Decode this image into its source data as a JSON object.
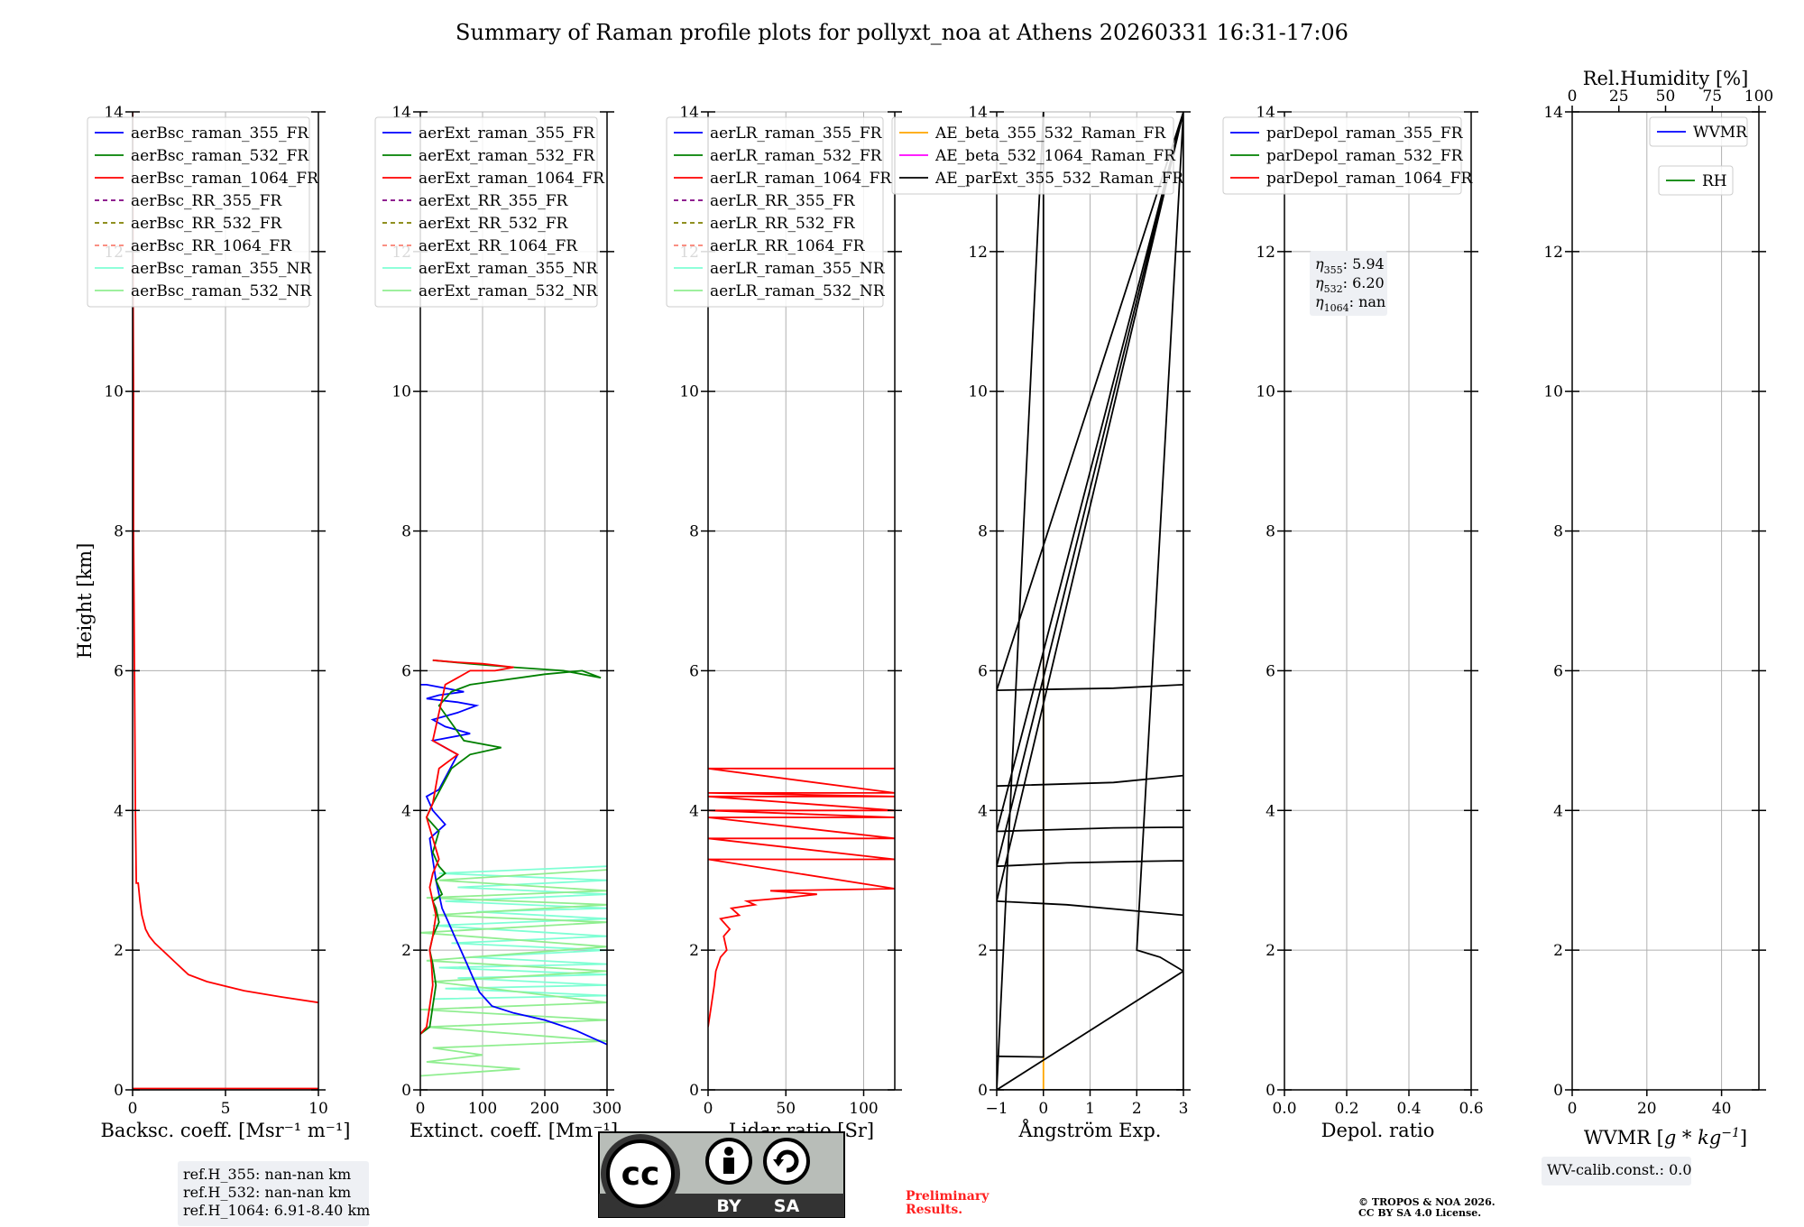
{
  "figure": {
    "title": "Summary of Raman profile plots for pollyxt_noa at Athens 20260331 16:31-17:06"
  },
  "chart_data": [
    {
      "type": "line",
      "id": "p1",
      "xlabel": "Backsc. coeff. [Msr⁻¹ m⁻¹]",
      "ylabel": "Height [km]",
      "xlim": [
        0,
        10
      ],
      "ylim": [
        0,
        14
      ],
      "xticks": [
        "0",
        "5",
        "10"
      ],
      "xtickvals": [
        0,
        5,
        10
      ],
      "yticks": [
        "0",
        "2",
        "4",
        "6",
        "8",
        "10",
        "12",
        "14"
      ],
      "ytickvals": [
        0,
        2,
        4,
        6,
        8,
        10,
        12,
        14
      ],
      "legend": [
        {
          "label": "aerBsc_raman_355_FR",
          "color": "#0000ff",
          "dash": false
        },
        {
          "label": "aerBsc_raman_532_FR",
          "color": "#008000",
          "dash": false
        },
        {
          "label": "aerBsc_raman_1064_FR",
          "color": "#ff0000",
          "dash": false
        },
        {
          "label": "aerBsc_RR_355_FR",
          "color": "#800080",
          "dash": true
        },
        {
          "label": "aerBsc_RR_532_FR",
          "color": "#808000",
          "dash": true
        },
        {
          "label": "aerBsc_RR_1064_FR",
          "color": "#fa8072",
          "dash": true
        },
        {
          "label": "aerBsc_raman_355_NR",
          "color": "#7fffd4",
          "dash": false
        },
        {
          "label": "aerBsc_raman_532_NR",
          "color": "#90ee90",
          "dash": false
        }
      ],
      "series": [
        {
          "name": "aerBsc_raman_1064_FR",
          "color": "#ff0000",
          "x": [
            10,
            8,
            6,
            4,
            3,
            2.4,
            1.8,
            1.2,
            0.9,
            0.7,
            0.5,
            0.4,
            0.3,
            0.2,
            0.15,
            0.1,
            0.05,
            0.05,
            0.02,
            0.0
          ],
          "y": [
            1.25,
            1.33,
            1.42,
            1.55,
            1.65,
            1.8,
            1.95,
            2.1,
            2.2,
            2.3,
            2.5,
            2.7,
            2.96,
            2.96,
            4,
            6,
            8,
            10,
            12,
            14
          ]
        },
        {
          "name": "aerBsc_raman_1064_FR_base",
          "color": "#ff0000",
          "x": [
            0,
            10
          ],
          "y": [
            0.02,
            0.02
          ]
        }
      ]
    },
    {
      "type": "line",
      "id": "p2",
      "xlabel": "Extinct. coeff. [Mm⁻¹]",
      "xlim": [
        0,
        300
      ],
      "ylim": [
        0,
        14
      ],
      "xticks": [
        "0",
        "100",
        "200",
        "300"
      ],
      "xtickvals": [
        0,
        100,
        200,
        300
      ],
      "yticks": [
        "0",
        "2",
        "4",
        "6",
        "8",
        "10",
        "12",
        "14"
      ],
      "ytickvals": [
        0,
        2,
        4,
        6,
        8,
        10,
        12,
        14
      ],
      "legend": [
        {
          "label": "aerExt_raman_355_FR",
          "color": "#0000ff",
          "dash": false
        },
        {
          "label": "aerExt_raman_532_FR",
          "color": "#008000",
          "dash": false
        },
        {
          "label": "aerExt_raman_1064_FR",
          "color": "#ff0000",
          "dash": false
        },
        {
          "label": "aerExt_RR_355_FR",
          "color": "#800080",
          "dash": true
        },
        {
          "label": "aerExt_RR_532_FR",
          "color": "#808000",
          "dash": true
        },
        {
          "label": "aerExt_RR_1064_FR",
          "color": "#fa8072",
          "dash": true
        },
        {
          "label": "aerExt_raman_355_NR",
          "color": "#7fffd4",
          "dash": false
        },
        {
          "label": "aerExt_raman_532_NR",
          "color": "#90ee90",
          "dash": false
        }
      ],
      "series": [
        {
          "name": "aerExt_raman_355_NR",
          "color": "#7fffd4",
          "x": [
            20,
            300,
            40,
            300,
            60,
            300,
            30,
            300,
            80,
            300,
            50,
            300,
            20,
            300,
            90,
            300,
            40,
            300,
            60,
            300,
            30,
            300
          ],
          "y": [
            1.3,
            1.35,
            1.45,
            1.5,
            1.6,
            1.65,
            1.75,
            1.8,
            1.9,
            2.0,
            2.1,
            2.2,
            2.35,
            2.45,
            2.55,
            2.6,
            2.7,
            2.8,
            2.9,
            3.0,
            3.1,
            3.2
          ]
        },
        {
          "name": "aerExt_raman_532_NR",
          "color": "#90ee90",
          "x": [
            0,
            160,
            10,
            100,
            20,
            300,
            10,
            300,
            0,
            300,
            20,
            300,
            10,
            300,
            0,
            300,
            20,
            300,
            10,
            300,
            30,
            300
          ],
          "y": [
            0.2,
            0.3,
            0.4,
            0.5,
            0.6,
            0.7,
            0.9,
            1.0,
            1.15,
            1.25,
            1.55,
            1.7,
            1.85,
            2.05,
            2.25,
            2.4,
            2.5,
            2.65,
            2.75,
            2.85,
            3.0,
            3.15
          ]
        },
        {
          "name": "aerExt_raman_355_FR",
          "color": "#0000ff",
          "x": [
            300,
            250,
            200,
            150,
            115,
            95,
            85,
            75,
            65,
            55,
            45,
            35,
            30,
            25,
            20,
            15,
            40,
            20,
            10,
            30,
            60,
            20,
            80,
            40,
            20,
            60,
            90,
            60,
            10,
            30,
            70,
            40,
            10,
            0
          ],
          "y": [
            0.65,
            0.85,
            1.0,
            1.1,
            1.2,
            1.4,
            1.6,
            1.8,
            2.0,
            2.2,
            2.4,
            2.6,
            2.8,
            3.0,
            3.3,
            3.6,
            3.8,
            4.0,
            4.2,
            4.3,
            4.8,
            5.0,
            5.1,
            5.2,
            5.3,
            5.4,
            5.5,
            5.55,
            5.6,
            5.65,
            5.7,
            5.75,
            5.8,
            5.8
          ]
        },
        {
          "name": "aerExt_raman_532_FR",
          "color": "#008000",
          "x": [
            0,
            15,
            20,
            25,
            20,
            15,
            20,
            30,
            25,
            20,
            35,
            30,
            25,
            40,
            30,
            20,
            30,
            10,
            20,
            50,
            80,
            130,
            70,
            30,
            50,
            80,
            120,
            160,
            200,
            260,
            290,
            230,
            150,
            80,
            20
          ],
          "y": [
            0.8,
            0.9,
            1.2,
            1.5,
            1.8,
            2.0,
            2.2,
            2.4,
            2.6,
            2.7,
            2.8,
            2.9,
            3.0,
            3.1,
            3.2,
            3.4,
            3.7,
            3.9,
            4.1,
            4.6,
            4.8,
            4.9,
            5.0,
            5.5,
            5.7,
            5.8,
            5.85,
            5.9,
            5.95,
            6.0,
            5.9,
            6.0,
            6.05,
            6.1,
            6.15
          ]
        },
        {
          "name": "aerExt_raman_1064_FR",
          "color": "#ff0000",
          "x": [
            0,
            10,
            15,
            20,
            18,
            15,
            20,
            25,
            20,
            15,
            20,
            30,
            20,
            10,
            20,
            30,
            60,
            40,
            20,
            40,
            60,
            80,
            120,
            150,
            100,
            60,
            20
          ],
          "y": [
            0.8,
            0.9,
            1.2,
            1.5,
            1.8,
            2.0,
            2.2,
            2.5,
            2.7,
            2.9,
            3.1,
            3.3,
            3.6,
            3.9,
            4.1,
            4.6,
            4.8,
            4.9,
            5.0,
            5.8,
            5.9,
            6.0,
            6.0,
            6.05,
            6.1,
            6.12,
            6.15
          ]
        }
      ],
      "info": [
        "ref.H_355: nan-nan km",
        "ref.H_532: nan-nan km",
        "ref.H_1064: 6.91-8.40 km"
      ]
    },
    {
      "type": "line",
      "id": "p3",
      "xlabel": "Lidar ratio [Sr]",
      "xlim": [
        0,
        120
      ],
      "ylim": [
        0,
        14
      ],
      "xticks": [
        "0",
        "50",
        "100"
      ],
      "xtickvals": [
        0,
        50,
        100
      ],
      "yticks": [
        "0",
        "2",
        "4",
        "6",
        "8",
        "10",
        "12",
        "14"
      ],
      "ytickvals": [
        0,
        2,
        4,
        6,
        8,
        10,
        12,
        14
      ],
      "legend": [
        {
          "label": "aerLR_raman_355_FR",
          "color": "#0000ff",
          "dash": false
        },
        {
          "label": "aerLR_raman_532_FR",
          "color": "#008000",
          "dash": false
        },
        {
          "label": "aerLR_raman_1064_FR",
          "color": "#ff0000",
          "dash": false
        },
        {
          "label": "aerLR_RR_355_FR",
          "color": "#800080",
          "dash": true
        },
        {
          "label": "aerLR_RR_532_FR",
          "color": "#808000",
          "dash": true
        },
        {
          "label": "aerLR_RR_1064_FR",
          "color": "#fa8072",
          "dash": true
        },
        {
          "label": "aerLR_raman_355_NR",
          "color": "#7fffd4",
          "dash": false
        },
        {
          "label": "aerLR_raman_532_NR",
          "color": "#90ee90",
          "dash": false
        }
      ],
      "series": [
        {
          "name": "aerLR_raman_1064_FR",
          "color": "#ff0000",
          "x": [
            0,
            2,
            4,
            5,
            8,
            12,
            10,
            14,
            8,
            20,
            15,
            30,
            25,
            50,
            70,
            40,
            120,
            0,
            120,
            0,
            120,
            0,
            120,
            0,
            120,
            0,
            120,
            0,
            120,
            0,
            120
          ],
          "y": [
            0.9,
            1.2,
            1.5,
            1.7,
            1.9,
            2.0,
            2.2,
            2.3,
            2.45,
            2.5,
            2.6,
            2.65,
            2.7,
            2.75,
            2.8,
            2.85,
            2.88,
            3.3,
            3.3,
            3.6,
            3.6,
            3.9,
            3.9,
            4.0,
            4.0,
            4.2,
            4.2,
            4.25,
            4.25,
            4.6,
            4.6
          ]
        }
      ]
    },
    {
      "type": "line",
      "id": "p4",
      "xlabel": "Ångström Exp.",
      "xlim": [
        -1,
        3
      ],
      "ylim": [
        0,
        14
      ],
      "xticks": [
        "−1",
        "0",
        "1",
        "2",
        "3"
      ],
      "xtickvals": [
        -1,
        0,
        1,
        2,
        3
      ],
      "yticks": [
        "0",
        "2",
        "4",
        "6",
        "8",
        "10",
        "12",
        "14"
      ],
      "ytickvals": [
        0,
        2,
        4,
        6,
        8,
        10,
        12,
        14
      ],
      "legend": [
        {
          "label": "AE_beta_355_532_Raman_FR",
          "color": "#ffa500",
          "dash": false
        },
        {
          "label": "AE_beta_532_1064_Raman_FR",
          "color": "#ff00ff",
          "dash": false
        },
        {
          "label": "AE_parExt_355_532_Raman_FR",
          "color": "#000000",
          "dash": false
        }
      ],
      "series": [
        {
          "name": "AE_beta_355_532_Raman_FR",
          "color": "#ffa500",
          "x": [
            0,
            0
          ],
          "y": [
            0,
            6.2
          ]
        },
        {
          "name": "AE_parExt_355_532_Raman_FR",
          "color": "#000000",
          "x": [
            -1,
            0,
            0,
            -1,
            0.8,
            2,
            3,
            3,
            -1,
            0.5,
            3,
            3,
            -1,
            0.5,
            2,
            3,
            3,
            -1,
            1.5,
            3,
            3,
            -1,
            1.5,
            3,
            3,
            2,
            2.5,
            3,
            -1
          ],
          "y": [
            0.48,
            0.47,
            14,
            0.0,
            0.0,
            0.0,
            0.0,
            14,
            2.7,
            2.65,
            2.5,
            14,
            3.2,
            3.25,
            3.27,
            3.28,
            14,
            3.7,
            3.75,
            3.76,
            14,
            5.72,
            5.75,
            5.8,
            14,
            2.0,
            1.9,
            1.7,
            0
          ]
        },
        {
          "name": "AE_parExt_355_532_Raman_FR_segs",
          "color": "#000000",
          "x": [
            -1,
            1.5,
            3
          ],
          "y": [
            4.35,
            4.4,
            4.5
          ]
        }
      ]
    },
    {
      "type": "line",
      "id": "p5",
      "xlabel": "Depol. ratio",
      "xlim": [
        0,
        0.6
      ],
      "ylim": [
        0,
        14
      ],
      "xticks": [
        "0.0",
        "0.2",
        "0.4",
        "0.6"
      ],
      "xtickvals": [
        0,
        0.2,
        0.4,
        0.6
      ],
      "yticks": [
        "0",
        "2",
        "4",
        "6",
        "8",
        "10",
        "12",
        "14"
      ],
      "ytickvals": [
        0,
        2,
        4,
        6,
        8,
        10,
        12,
        14
      ],
      "legend": [
        {
          "label": "parDepol_raman_355_FR",
          "color": "#0000ff",
          "dash": false
        },
        {
          "label": "parDepol_raman_532_FR",
          "color": "#008000",
          "dash": false
        },
        {
          "label": "parDepol_raman_1064_FR",
          "color": "#ff0000",
          "dash": false
        }
      ],
      "series": [],
      "eta": [
        {
          "sym": "η",
          "sub": "355",
          "val": ": 5.94"
        },
        {
          "sym": "η",
          "sub": "532",
          "val": ": 6.20"
        },
        {
          "sym": "η",
          "sub": "1064",
          "val": ": nan"
        }
      ]
    },
    {
      "type": "line",
      "id": "p6",
      "xlabel": "WVMR [g * kg⁻¹]",
      "xlabel_parts": [
        "WVMR [",
        "g * kg",
        "−1",
        "]"
      ],
      "toplabel": "Rel.Humidity [%]",
      "xlim": [
        0,
        50
      ],
      "ylim": [
        0,
        14
      ],
      "xticks": [
        "0",
        "20",
        "40"
      ],
      "xtickvals": [
        0,
        20,
        40
      ],
      "topticks": [
        "0",
        "25",
        "50",
        "75",
        "100"
      ],
      "toptickvals": [
        0,
        25,
        50,
        75,
        100
      ],
      "yticks": [
        "0",
        "2",
        "4",
        "6",
        "8",
        "10",
        "12",
        "14"
      ],
      "ytickvals": [
        0,
        2,
        4,
        6,
        8,
        10,
        12,
        14
      ],
      "legend": [
        {
          "label": "WVMR",
          "color": "#0000ff",
          "dash": false
        },
        {
          "label": "RH",
          "color": "#008000",
          "dash": false
        }
      ],
      "series": [],
      "info": [
        "WV-calib.const.: 0.0"
      ]
    }
  ],
  "footer": {
    "license_by": "BY",
    "license_sa": "SA",
    "license_cc": "cc",
    "preliminary_1": "Preliminary",
    "preliminary_2": "Results.",
    "copyright_1": "© TROPOS & NOA 2026.",
    "copyright_2": "CC BY SA 4.0 License."
  },
  "colors": {
    "grid": "#b0b0b0",
    "infobox_bg": "#eef0f4",
    "preliminary": "#ff2020",
    "cc_gray": "#b8bdb8"
  }
}
